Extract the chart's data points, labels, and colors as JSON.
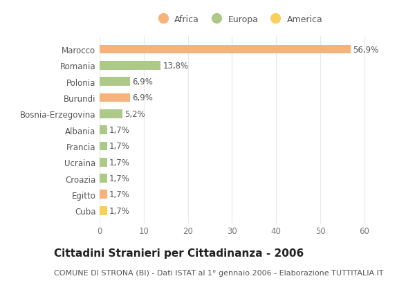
{
  "categories": [
    "Cuba",
    "Egitto",
    "Croazia",
    "Ucraina",
    "Francia",
    "Albania",
    "Bosnia-Erzegovina",
    "Burundi",
    "Polonia",
    "Romania",
    "Marocco"
  ],
  "values": [
    1.7,
    1.7,
    1.7,
    1.7,
    1.7,
    1.7,
    5.2,
    6.9,
    6.9,
    13.8,
    56.9
  ],
  "colors": [
    "#f5d060",
    "#f5b27a",
    "#adc98a",
    "#adc98a",
    "#adc98a",
    "#adc98a",
    "#adc98a",
    "#f5b27a",
    "#adc98a",
    "#adc98a",
    "#f5b27a"
  ],
  "labels": [
    "1,7%",
    "1,7%",
    "1,7%",
    "1,7%",
    "1,7%",
    "1,7%",
    "5,2%",
    "6,9%",
    "6,9%",
    "13,8%",
    "56,9%"
  ],
  "title": "Cittadini Stranieri per Cittadinanza - 2006",
  "subtitle": "COMUNE DI STRONA (BI) - Dati ISTAT al 1° gennaio 2006 - Elaborazione TUTTITALIA.IT",
  "xlim": [
    0,
    63
  ],
  "xticks": [
    0,
    10,
    20,
    30,
    40,
    50,
    60
  ],
  "legend": [
    {
      "label": "Africa",
      "color": "#f5b27a"
    },
    {
      "label": "Europa",
      "color": "#adc98a"
    },
    {
      "label": "America",
      "color": "#f5d060"
    }
  ],
  "bar_height": 0.55,
  "bg_color": "#ffffff",
  "grid_color": "#e8e8e8",
  "label_color": "#555555",
  "tick_color": "#777777",
  "label_fontsize": 8.5,
  "tick_fontsize": 8.5,
  "title_fontsize": 11,
  "subtitle_fontsize": 8,
  "legend_fontsize": 9
}
